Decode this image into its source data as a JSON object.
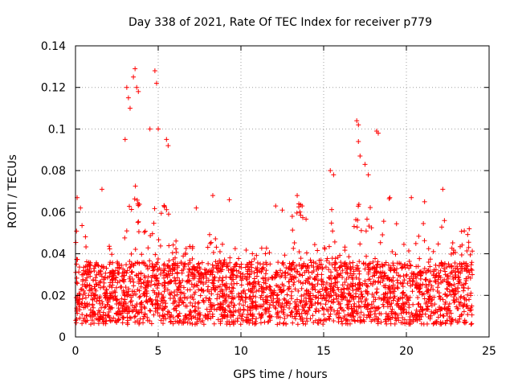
{
  "chart_data": {
    "type": "scatter",
    "title": "Day 338 of 2021, Rate Of TEC Index for receiver p779",
    "xlabel": "GPS time / hours",
    "ylabel": "ROTI / TECUs",
    "xlim": [
      0,
      25
    ],
    "ylim": [
      0,
      0.14
    ],
    "x_ticks": [
      0,
      5,
      10,
      15,
      20,
      25
    ],
    "y_ticks": [
      0,
      0.02,
      0.04,
      0.06,
      0.08,
      0.1,
      0.12,
      0.14
    ],
    "x_tick_labels": [
      "0",
      "5",
      "10",
      "15",
      "20",
      "25"
    ],
    "y_tick_labels": [
      "0",
      "0.02",
      "0.04",
      "0.06",
      "0.08",
      "0.1",
      "0.12",
      "0.14"
    ],
    "grid": true,
    "marker": "+",
    "color": "#ff0000",
    "series": [
      {
        "name": "ROTI",
        "points_note": "dense band 0.005-0.04 TECU/s across 0-24 h; selected visible outliers listed",
        "x": [
          0.1,
          0.3,
          1.6,
          3.0,
          3.1,
          3.2,
          3.3,
          3.5,
          3.6,
          3.7,
          3.8,
          4.5,
          4.8,
          4.9,
          5.0,
          5.5,
          5.6,
          7.3,
          8.3,
          9.3,
          12.1,
          12.5,
          13.1,
          13.4,
          13.5,
          13.7,
          15.4,
          15.6,
          17.0,
          17.1,
          17.1,
          17.2,
          17.5,
          17.7,
          18.2,
          18.3,
          19.0,
          20.3,
          21.1,
          22.2,
          22.3,
          23.5,
          23.8
        ],
        "y": [
          0.067,
          0.062,
          0.071,
          0.095,
          0.12,
          0.115,
          0.11,
          0.125,
          0.129,
          0.12,
          0.118,
          0.1,
          0.128,
          0.122,
          0.1,
          0.095,
          0.092,
          0.062,
          0.068,
          0.066,
          0.063,
          0.061,
          0.058,
          0.068,
          0.064,
          0.063,
          0.08,
          0.078,
          0.104,
          0.102,
          0.094,
          0.087,
          0.083,
          0.078,
          0.099,
          0.098,
          0.067,
          0.067,
          0.065,
          0.071,
          0.056,
          0.051,
          0.052
        ]
      }
    ]
  }
}
